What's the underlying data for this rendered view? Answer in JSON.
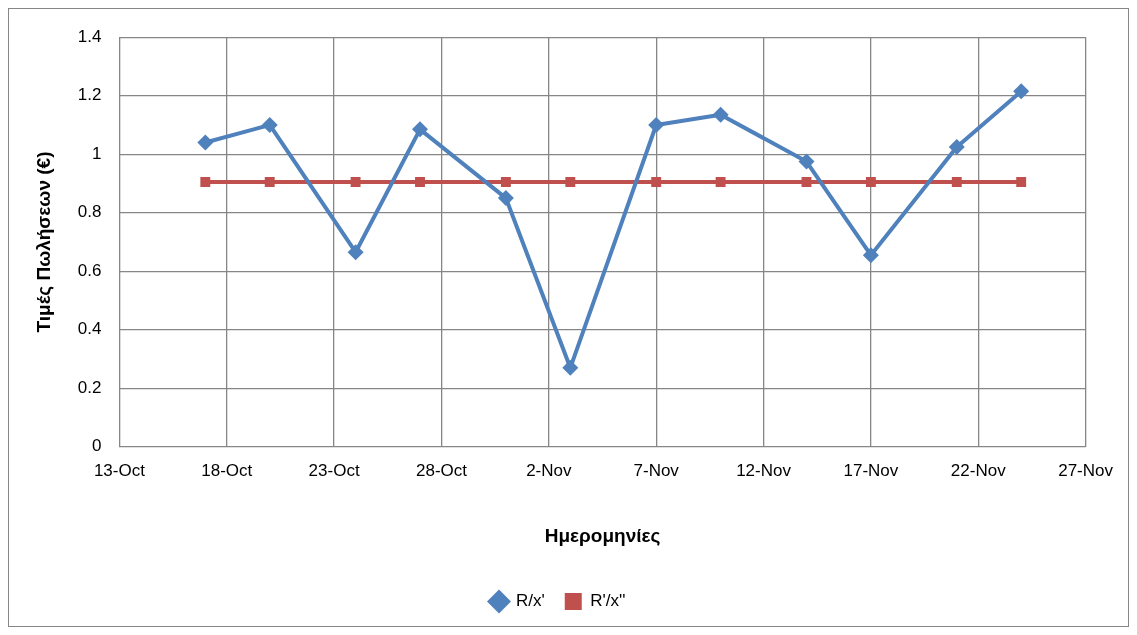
{
  "chart_data": {
    "type": "line",
    "xlabel": "Ημερομηνίες",
    "ylabel": "Τιμές Πωλήσεων (€)",
    "x": [
      "--10-17",
      "--10-20",
      "--10-24",
      "--10-27",
      "--10-31",
      "--11-03",
      "--11-07",
      "--11-10",
      "--11-14",
      "--11-17",
      "--11-21",
      "--11-24"
    ],
    "series": [
      {
        "name": "R/x'",
        "color": "#4f81bd",
        "marker": "diamond",
        "values": [
          1.04,
          1.1,
          0.665,
          1.085,
          0.85,
          0.27,
          1.1,
          1.135,
          0.975,
          0.655,
          1.025,
          1.215
        ]
      },
      {
        "name": "R'/x''",
        "color": "#c0504d",
        "marker": "square",
        "values": [
          0.905,
          0.905,
          0.905,
          0.905,
          0.905,
          0.905,
          0.905,
          0.905,
          0.905,
          0.905,
          0.905,
          0.905
        ]
      }
    ],
    "xlim": [
      "--10-13",
      "--11-27"
    ],
    "xticks": [
      {
        "value": "--10-13",
        "label": "13-Oct"
      },
      {
        "value": "--10-18",
        "label": "18-Oct"
      },
      {
        "value": "--10-23",
        "label": "23-Oct"
      },
      {
        "value": "--10-28",
        "label": "28-Oct"
      },
      {
        "value": "--11-02",
        "label": "2-Nov"
      },
      {
        "value": "--11-07",
        "label": "7-Nov"
      },
      {
        "value": "--11-12",
        "label": "12-Nov"
      },
      {
        "value": "--11-17",
        "label": "17-Nov"
      },
      {
        "value": "--11-22",
        "label": "22-Nov"
      },
      {
        "value": "--11-27",
        "label": "27-Nov"
      }
    ],
    "ylim": [
      0,
      1.4
    ],
    "yticks": [
      0,
      0.2,
      0.4,
      0.6,
      0.8,
      1,
      1.2,
      1.4
    ],
    "grid": true,
    "legend": "bottom",
    "line_style": "solid"
  }
}
